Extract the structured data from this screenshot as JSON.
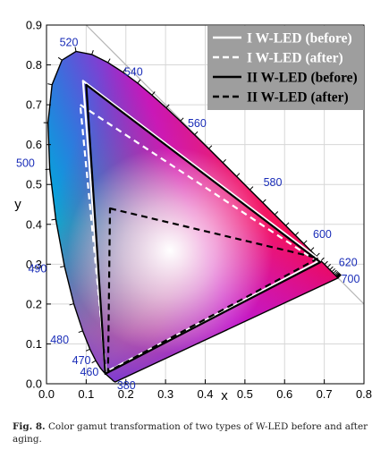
{
  "caption": {
    "label": "Fig. 8.",
    "text": "Color gamut transformation of two types of W-LED before and after aging."
  },
  "chart_data": {
    "type": "line",
    "xlabel": "x",
    "ylabel": "y",
    "xlim": [
      0.0,
      0.8
    ],
    "ylim": [
      0.0,
      0.9
    ],
    "xticks": [
      "0.0",
      "0.1",
      "0.2",
      "0.3",
      "0.4",
      "0.5",
      "0.6",
      "0.7",
      "0.8"
    ],
    "yticks": [
      "0.0",
      "0.1",
      "0.2",
      "0.3",
      "0.4",
      "0.5",
      "0.6",
      "0.7",
      "0.8",
      "0.9"
    ],
    "grid": true,
    "legend_position": "top-right",
    "legend_bg": "#9e9e9e",
    "spectral_locus": [
      [
        0.1741,
        0.005
      ],
      [
        0.1738,
        0.0049
      ],
      [
        0.1736,
        0.0049
      ],
      [
        0.1733,
        0.0048
      ],
      [
        0.173,
        0.0048
      ],
      [
        0.1726,
        0.0048
      ],
      [
        0.1721,
        0.0048
      ],
      [
        0.1714,
        0.0051
      ],
      [
        0.1703,
        0.0058
      ],
      [
        0.1689,
        0.0069
      ],
      [
        0.1669,
        0.0086
      ],
      [
        0.1644,
        0.0109
      ],
      [
        0.1611,
        0.0138
      ],
      [
        0.1566,
        0.0177
      ],
      [
        0.151,
        0.0227
      ],
      [
        0.144,
        0.0297
      ],
      [
        0.1355,
        0.0399
      ],
      [
        0.1241,
        0.0578
      ],
      [
        0.1096,
        0.0868
      ],
      [
        0.0913,
        0.1327
      ],
      [
        0.0687,
        0.2007
      ],
      [
        0.0454,
        0.295
      ],
      [
        0.0235,
        0.4127
      ],
      [
        0.0082,
        0.5384
      ],
      [
        0.0039,
        0.6548
      ],
      [
        0.0139,
        0.7502
      ],
      [
        0.0389,
        0.812
      ],
      [
        0.0743,
        0.8338
      ],
      [
        0.1142,
        0.8262
      ],
      [
        0.1547,
        0.8059
      ],
      [
        0.1929,
        0.7816
      ],
      [
        0.2296,
        0.7543
      ],
      [
        0.2658,
        0.7243
      ],
      [
        0.3016,
        0.6923
      ],
      [
        0.3373,
        0.6589
      ],
      [
        0.3731,
        0.6245
      ],
      [
        0.4087,
        0.5896
      ],
      [
        0.4441,
        0.5547
      ],
      [
        0.4788,
        0.5202
      ],
      [
        0.5125,
        0.4866
      ],
      [
        0.5448,
        0.4544
      ],
      [
        0.5752,
        0.4242
      ],
      [
        0.6029,
        0.3965
      ],
      [
        0.627,
        0.3725
      ],
      [
        0.6482,
        0.3514
      ],
      [
        0.6658,
        0.334
      ],
      [
        0.6801,
        0.3197
      ],
      [
        0.6915,
        0.3083
      ],
      [
        0.7006,
        0.2993
      ],
      [
        0.7079,
        0.292
      ],
      [
        0.714,
        0.2859
      ],
      [
        0.719,
        0.2809
      ],
      [
        0.723,
        0.277
      ],
      [
        0.726,
        0.274
      ],
      [
        0.7283,
        0.2717
      ],
      [
        0.73,
        0.27
      ],
      [
        0.7311,
        0.2689
      ],
      [
        0.732,
        0.268
      ],
      [
        0.7327,
        0.2673
      ],
      [
        0.7334,
        0.2666
      ],
      [
        0.734,
        0.266
      ],
      [
        0.7344,
        0.2656
      ],
      [
        0.7346,
        0.2654
      ],
      [
        0.7347,
        0.2653
      ]
    ],
    "wavelength_labels": [
      {
        "text": "380",
        "x": 0.1741,
        "y": 0.005
      },
      {
        "text": "460",
        "x": 0.144,
        "y": 0.0297
      },
      {
        "text": "470",
        "x": 0.1241,
        "y": 0.0578
      },
      {
        "text": "480",
        "x": 0.0913,
        "y": 0.1327
      },
      {
        "text": "490",
        "x": 0.0454,
        "y": 0.295
      },
      {
        "text": "500",
        "x": 0.0082,
        "y": 0.5384
      },
      {
        "text": "520",
        "x": 0.0743,
        "y": 0.8338
      },
      {
        "text": "540",
        "x": 0.2296,
        "y": 0.7543
      },
      {
        "text": "560",
        "x": 0.3731,
        "y": 0.6245
      },
      {
        "text": "580",
        "x": 0.5125,
        "y": 0.4866
      },
      {
        "text": "600",
        "x": 0.627,
        "y": 0.3725
      },
      {
        "text": "620",
        "x": 0.6915,
        "y": 0.3083
      },
      {
        "text": "700",
        "x": 0.7347,
        "y": 0.2653
      }
    ],
    "series": [
      {
        "name": "I W-LED (before)",
        "color": "#ffffff",
        "dash": "solid",
        "points": [
          [
            0.092,
            0.76
          ],
          [
            0.69,
            0.31
          ],
          [
            0.148,
            0.028
          ]
        ]
      },
      {
        "name": "I W-LED (after)",
        "color": "#ffffff",
        "dash": "dashed",
        "points": [
          [
            0.085,
            0.7
          ],
          [
            0.685,
            0.305
          ],
          [
            0.15,
            0.03
          ]
        ]
      },
      {
        "name": "II W-LED (before)",
        "color": "#000000",
        "dash": "solid",
        "points": [
          [
            0.1,
            0.75
          ],
          [
            0.69,
            0.305
          ],
          [
            0.148,
            0.025
          ]
        ]
      },
      {
        "name": "II W-LED (after)",
        "color": "#000000",
        "dash": "dashed",
        "points": [
          [
            0.16,
            0.44
          ],
          [
            0.685,
            0.315
          ],
          [
            0.155,
            0.03
          ]
        ]
      }
    ]
  }
}
